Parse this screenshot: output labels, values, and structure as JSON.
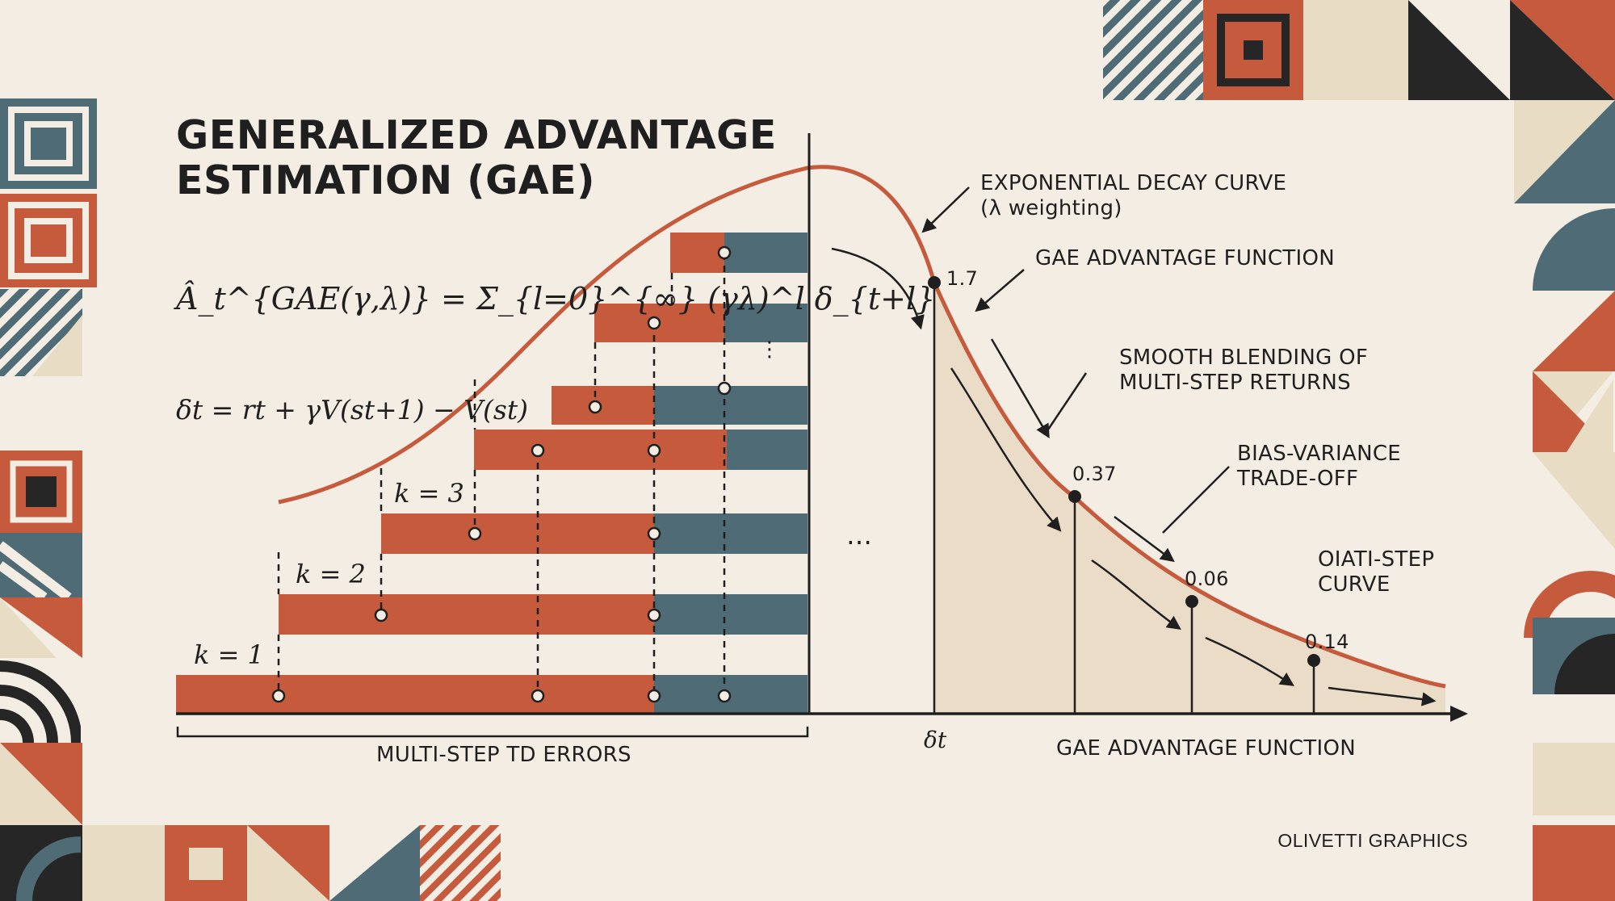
{
  "title_line1": "GENERALIZED ADVANTAGE",
  "title_line2": "ESTIMATION  (GAE)",
  "formula_gae": "Â_t^{GAE(γ,λ)} = Σ_{l=0}^{∞} (γλ)^l δ_{t+l}",
  "formula_delta": "δt = rt + γV(st+1) − V(st)",
  "step_labels": [
    "k = 1",
    "k = 2",
    "k = 3"
  ],
  "labels": {
    "exp_decay_1": "EXPONENTIAL DECAY CURVE",
    "exp_decay_2": "(λ weighting)",
    "gae_fn_top": "GAE ADVANTAGE FUNCTION",
    "smooth_1": "SMOOTH BLENDING OF",
    "smooth_2": "MULTI-STEP RETURNS",
    "bias_1": "BIAS-VARIANCE",
    "bias_2": "TRADE-OFF",
    "multi_1": "OIATI-STEP",
    "multi_2": "CURVE",
    "td_errors": "MULTI-STEP TD ERRORS",
    "delta_axis": "δt",
    "gae_fn_bottom": "GAE ADVANTAGE FUNCTION",
    "credit": "OLIVETTI GRAPHICS"
  },
  "point_values": [
    "1.7",
    "0.37",
    "0.06",
    "0.14"
  ],
  "colors": {
    "background": "#f3ede3",
    "orange": "#c65a3c",
    "teal": "#4f6b75",
    "dark": "#262626",
    "cream": "#e8dcc5"
  }
}
